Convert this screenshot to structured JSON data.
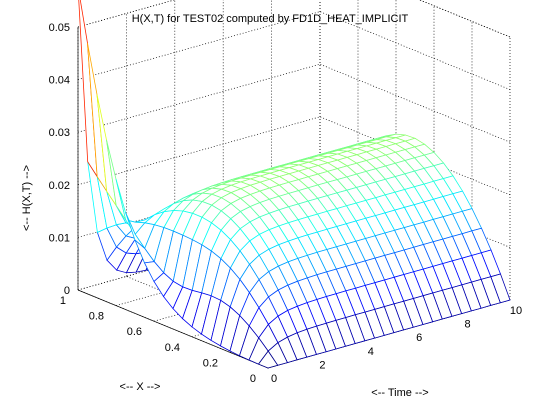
{
  "chart_data": {
    "type": "surface",
    "title": "H(X,T) for TEST02 computed by FD1D_HEAT_IMPLICIT",
    "xlabel": "<-- Time -->",
    "ylabel": "<-- X -->",
    "zlabel": "<-- H(X,T) -->",
    "xlim": [
      0,
      10
    ],
    "ylim": [
      0,
      1
    ],
    "zlim": [
      0,
      0.05
    ],
    "x_ticks": [
      "0",
      "2",
      "4",
      "6",
      "8",
      "10"
    ],
    "y_ticks": [
      "0",
      "0.2",
      "0.4",
      "0.6",
      "0.8",
      "1"
    ],
    "z_ticks": [
      "0",
      "0.01",
      "0.02",
      "0.03",
      "0.04",
      "0.05"
    ],
    "grid": true,
    "colormap": "jet",
    "mesh_lines": true,
    "t_samples": [
      0,
      0.4,
      0.8,
      1.2,
      1.6,
      2.0,
      2.4,
      2.8,
      3.2,
      3.6,
      4.0,
      4.4,
      4.8,
      5.2,
      5.6,
      6.0,
      6.4,
      6.8,
      7.2,
      7.6,
      8.0,
      8.4,
      8.8,
      9.2,
      9.6,
      10.0
    ],
    "x_samples": [
      0,
      0.05,
      0.1,
      0.15,
      0.2,
      0.25,
      0.3,
      0.35,
      0.4,
      0.45,
      0.5,
      0.55,
      0.6,
      0.65,
      0.7,
      0.75,
      0.8,
      0.85,
      0.9,
      0.95,
      1.0
    ],
    "h_steady_max": 0.022,
    "h_at_x1_t0": 0.045,
    "h_at_x0": 0.0
  }
}
